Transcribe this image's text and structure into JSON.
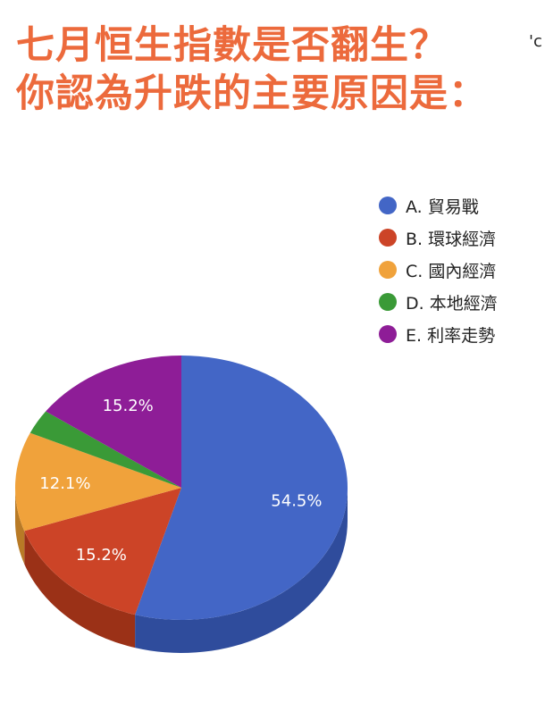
{
  "title_lines": [
    "七月恒生指數是否翻生？",
    "你認為升跌的主要原因是："
  ],
  "corner_mark": "'c",
  "chart_data": {
    "type": "pie",
    "categories": [
      "A. 貿易戰",
      "B. 環球經濟",
      "C. 國內經濟",
      "D. 本地經濟",
      "E. 利率走勢"
    ],
    "values": [
      54.5,
      15.2,
      12.1,
      3.0,
      15.2
    ],
    "data_labels": [
      "54.5%",
      "15.2%",
      "12.1%",
      "",
      "15.2%"
    ],
    "colors": [
      "#4366c6",
      "#cc4427",
      "#f0a23b",
      "#3a9a37",
      "#8e1d97"
    ],
    "side_colors": [
      "#2f4c9c",
      "#9b3117",
      "#b87a26",
      "#2a7128",
      "#6a136f"
    ],
    "legend_placement": "right",
    "style": "3d"
  }
}
